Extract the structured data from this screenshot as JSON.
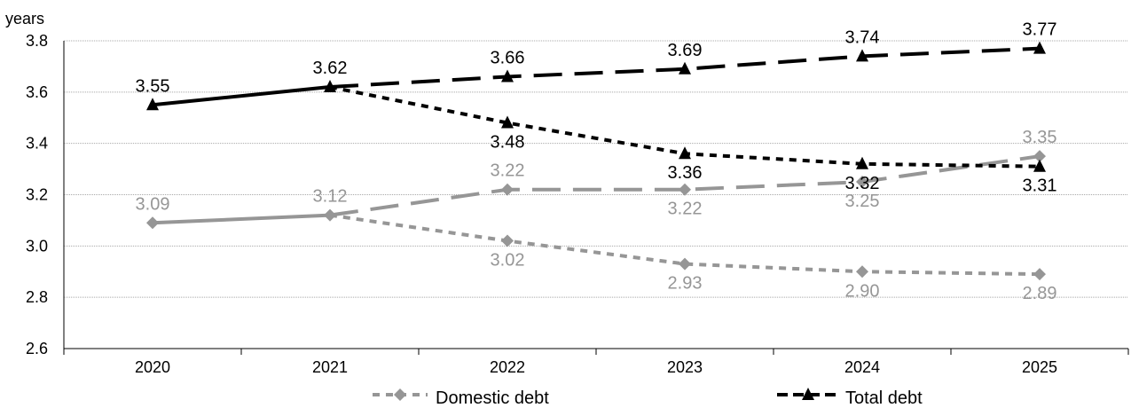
{
  "chart_data": {
    "type": "line",
    "ylabel": "years",
    "ylim": [
      2.6,
      3.8
    ],
    "yticks": [
      "2.6",
      "2.8",
      "3.0",
      "3.2",
      "3.4",
      "3.6",
      "3.8"
    ],
    "grid": true,
    "legend_position": "bottom",
    "categories": [
      "2020",
      "2021",
      "2022",
      "2023",
      "2024",
      "2025"
    ],
    "series": [
      {
        "name": "Domestic debt",
        "color": "#969696",
        "marker": "diamond",
        "legend_dash": "dotted",
        "segments": [
          {
            "style": "solid",
            "points": [
              [
                "2020",
                3.09
              ],
              [
                "2021",
                3.12
              ]
            ]
          },
          {
            "style": "dotted",
            "points": [
              [
                "2021",
                3.12
              ],
              [
                "2022",
                3.02
              ],
              [
                "2023",
                2.93
              ],
              [
                "2024",
                2.9
              ],
              [
                "2025",
                2.89
              ]
            ]
          },
          {
            "style": "long-dash",
            "points": [
              [
                "2021",
                3.12
              ],
              [
                "2022",
                3.22
              ],
              [
                "2023",
                3.22
              ],
              [
                "2024",
                3.25
              ],
              [
                "2025",
                3.35
              ]
            ]
          }
        ],
        "labels": [
          {
            "x": "2020",
            "y": 3.09,
            "text": "3.09",
            "pos": "above"
          },
          {
            "x": "2021",
            "y": 3.12,
            "text": "3.12",
            "pos": "above"
          },
          {
            "x": "2022",
            "y": 3.22,
            "text": "3.22",
            "pos": "above"
          },
          {
            "x": "2022",
            "y": 3.02,
            "text": "3.02",
            "pos": "below"
          },
          {
            "x": "2023",
            "y": 3.22,
            "text": "3.22",
            "pos": "below"
          },
          {
            "x": "2023",
            "y": 2.93,
            "text": "2.93",
            "pos": "below"
          },
          {
            "x": "2024",
            "y": 3.25,
            "text": "3.25",
            "pos": "below"
          },
          {
            "x": "2024",
            "y": 2.9,
            "text": "2.90",
            "pos": "below"
          },
          {
            "x": "2025",
            "y": 3.35,
            "text": "3.35",
            "pos": "above"
          },
          {
            "x": "2025",
            "y": 2.89,
            "text": "2.89",
            "pos": "below"
          }
        ]
      },
      {
        "name": "Total debt",
        "color": "#000000",
        "marker": "triangle",
        "legend_dash": "dashed",
        "segments": [
          {
            "style": "solid",
            "points": [
              [
                "2020",
                3.55
              ],
              [
                "2021",
                3.62
              ]
            ]
          },
          {
            "style": "long-dash",
            "points": [
              [
                "2021",
                3.62
              ],
              [
                "2022",
                3.66
              ],
              [
                "2023",
                3.69
              ],
              [
                "2024",
                3.74
              ],
              [
                "2025",
                3.77
              ]
            ]
          },
          {
            "style": "dotted",
            "points": [
              [
                "2021",
                3.62
              ],
              [
                "2022",
                3.48
              ],
              [
                "2023",
                3.36
              ],
              [
                "2024",
                3.32
              ],
              [
                "2025",
                3.31
              ]
            ]
          }
        ],
        "labels": [
          {
            "x": "2020",
            "y": 3.55,
            "text": "3.55",
            "pos": "above"
          },
          {
            "x": "2021",
            "y": 3.62,
            "text": "3.62",
            "pos": "above"
          },
          {
            "x": "2022",
            "y": 3.66,
            "text": "3.66",
            "pos": "above"
          },
          {
            "x": "2022",
            "y": 3.48,
            "text": "3.48",
            "pos": "below"
          },
          {
            "x": "2023",
            "y": 3.69,
            "text": "3.69",
            "pos": "above"
          },
          {
            "x": "2023",
            "y": 3.36,
            "text": "3.36",
            "pos": "below"
          },
          {
            "x": "2024",
            "y": 3.74,
            "text": "3.74",
            "pos": "above"
          },
          {
            "x": "2024",
            "y": 3.32,
            "text": "3.32",
            "pos": "below"
          },
          {
            "x": "2025",
            "y": 3.77,
            "text": "3.77",
            "pos": "above"
          },
          {
            "x": "2025",
            "y": 3.31,
            "text": "3.31",
            "pos": "below"
          }
        ]
      }
    ]
  }
}
